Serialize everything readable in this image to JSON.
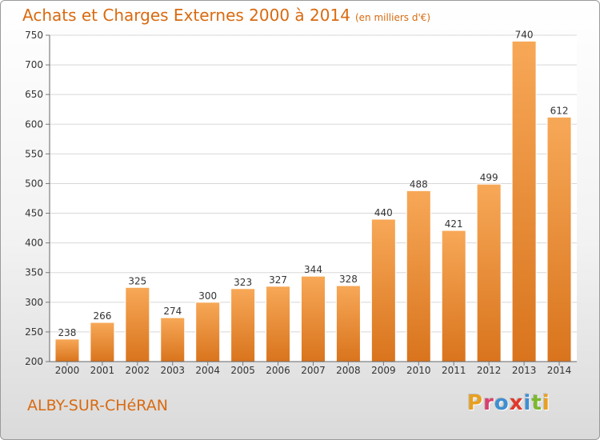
{
  "header": {
    "title": "Achats et Charges Externes 2000 à 2014",
    "subtitle": "(en milliers d'€)"
  },
  "footer": {
    "city": "ALBY-SUR-CHéRAN",
    "logo": "Proxiti"
  },
  "colors": {
    "accent": "#d96a10",
    "bar_light": "#f7a857",
    "bar_dark": "#d9741d",
    "logo_letters": [
      "#e8a021",
      "#d9406e",
      "#3f8fd1",
      "#e03a2a",
      "#3f8fd1",
      "#7cb82f",
      "#e8a021"
    ]
  },
  "chart_data": {
    "type": "bar",
    "title": "Achats et Charges Externes 2000 à 2014",
    "categories": [
      "2000",
      "2001",
      "2002",
      "2003",
      "2004",
      "2005",
      "2006",
      "2007",
      "2008",
      "2009",
      "2010",
      "2011",
      "2012",
      "2013",
      "2014"
    ],
    "values": [
      238,
      266,
      325,
      274,
      300,
      323,
      327,
      344,
      328,
      440,
      488,
      421,
      499,
      740,
      612
    ],
    "ylim": [
      200,
      750
    ],
    "yticks": [
      200,
      250,
      300,
      350,
      400,
      450,
      500,
      550,
      600,
      650,
      700,
      750
    ],
    "grid": true,
    "data_labels": true
  }
}
